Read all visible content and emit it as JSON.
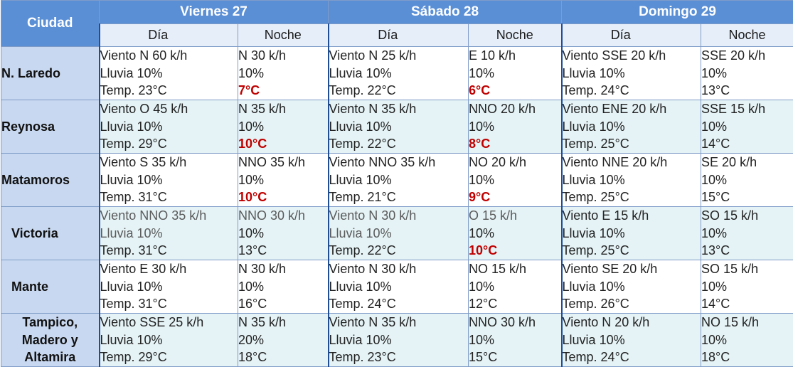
{
  "header": {
    "city_label": "Ciudad",
    "days": [
      "Viernes 27",
      "Sábado 28",
      "Domingo 29"
    ],
    "day_label": "Día",
    "night_label": "Noche"
  },
  "colors": {
    "header": "#5a8fd6",
    "city": "#c8d8f0",
    "cold": "#c00000"
  },
  "rows": [
    {
      "city": "N. Laredo",
      "cells": [
        {
          "l1": "Viento  N 60  k/h",
          "l2": "Lluvia   10%",
          "l3": "Temp.  23°C"
        },
        {
          "l1": "N 30 k/h",
          "l2": "10%",
          "l3": "7°C"
        },
        {
          "l1": "Viento  N 25  k/h",
          "l2": "Lluvia   10%",
          "l3": "Temp.  22°C"
        },
        {
          "l1": "E 10 k/h",
          "l2": "10%",
          "l3": "6°C"
        },
        {
          "l1": "Viento  SSE 20 k/h",
          "l2": "Lluvia   10%",
          "l3": "Temp.  24°C"
        },
        {
          "l1": "SSE 20 k/h",
          "l2": "10%",
          "l3": "13°C"
        }
      ]
    },
    {
      "city": "Reynosa",
      "cells": [
        {
          "l1": "Viento  O 45 k/h",
          "l2": "Lluvia   10%",
          "l3": "Temp.  29°C"
        },
        {
          "l1": "N 35 k/h",
          "l2": "10%",
          "l3": "10°C"
        },
        {
          "l1": "Viento  N 35 k/h",
          "l2": "Lluvia   10%",
          "l3": "Temp.  22°C"
        },
        {
          "l1": "NNO 20 k/h",
          "l2": "10%",
          "l3": "8°C"
        },
        {
          "l1": "Viento  ENE 20 k/h",
          "l2": "Lluvia   10%",
          "l3": "Temp.  25°C"
        },
        {
          "l1": "SSE 15 k/h",
          "l2": "10%",
          "l3": "14°C"
        }
      ]
    },
    {
      "city": "Matamoros",
      "cells": [
        {
          "l1": "Viento  S 35 k/h",
          "l2": "Lluvia   10%",
          "l3": "Temp.  31°C"
        },
        {
          "l1": "NNO 35 k/h",
          "l2": "10%",
          "l3": "10°C"
        },
        {
          "l1": "Viento  NNO 35 k/h",
          "l2": "Lluvia   10%",
          "l3": "Temp.  21°C"
        },
        {
          "l1": "NO 20 k/h",
          "l2": "10%",
          "l3": "9°C"
        },
        {
          "l1": "Viento  NNE 20 k/h",
          "l2": "Lluvia   10%",
          "l3": "Temp.  25°C"
        },
        {
          "l1": "SE 20 k/h",
          "l2": "10%",
          "l3": "15°C"
        }
      ]
    },
    {
      "city": "Victoria",
      "cells": [
        {
          "l1": "Viento  NNO 35 k/h",
          "l2": "Lluvia   10%",
          "l3": "Temp.  31°C"
        },
        {
          "l1": "NNO 30 k/h",
          "l2": "10%",
          "l3": "13°C"
        },
        {
          "l1": "Viento  N 30 k/h",
          "l2": "Lluvia   10%",
          "l3": "Temp.  22°C"
        },
        {
          "l1": "O 15 k/h",
          "l2": "10%",
          "l3": "10°C"
        },
        {
          "l1": "Viento  E 15 k/h",
          "l2": "Lluvia   10%",
          "l3": "Temp.  25°C"
        },
        {
          "l1": "SO 15 k/h",
          "l2": "10%",
          "l3": "13°C"
        }
      ]
    },
    {
      "city": "Mante",
      "cells": [
        {
          "l1": "Viento  E 30  k/h",
          "l2": "Lluvia   10%",
          "l3": "Temp.  31°C"
        },
        {
          "l1": "N 30 k/h",
          "l2": "10%",
          "l3": "16°C"
        },
        {
          "l1": "Viento  N 30 k/h",
          "l2": "Lluvia   10%",
          "l3": "Temp.  24°C"
        },
        {
          "l1": "NO 15 k/h",
          "l2": "10%",
          "l3": "12°C"
        },
        {
          "l1": "Viento  SE 20 k/h",
          "l2": "Lluvia   10%",
          "l3": "Temp.  26°C"
        },
        {
          "l1": "SO 15 k/h",
          "l2": "10%",
          "l3": "14°C"
        }
      ]
    },
    {
      "city_lines": [
        "Tampico,",
        "Madero y",
        "Altamira"
      ],
      "cells": [
        {
          "l1": "Viento  SSE 25 k/h",
          "l2": "Lluvia   10%",
          "l3": "Temp.  29°C"
        },
        {
          "l1": "N 35 k/h",
          "l2": "20%",
          "l3": "18°C"
        },
        {
          "l1": "Viento  N 35 k/h",
          "l2": "Lluvia   10%",
          "l3": "Temp.  23°C"
        },
        {
          "l1": "NNO 30 k/h",
          "l2": "10%",
          "l3": "15°C"
        },
        {
          "l1": "Viento  N 20 k/h",
          "l2": "Lluvia   10%",
          "l3": "Temp.  24°C"
        },
        {
          "l1": "NO 15 k/h",
          "l2": "10%",
          "l3": "18°C"
        }
      ]
    }
  ]
}
